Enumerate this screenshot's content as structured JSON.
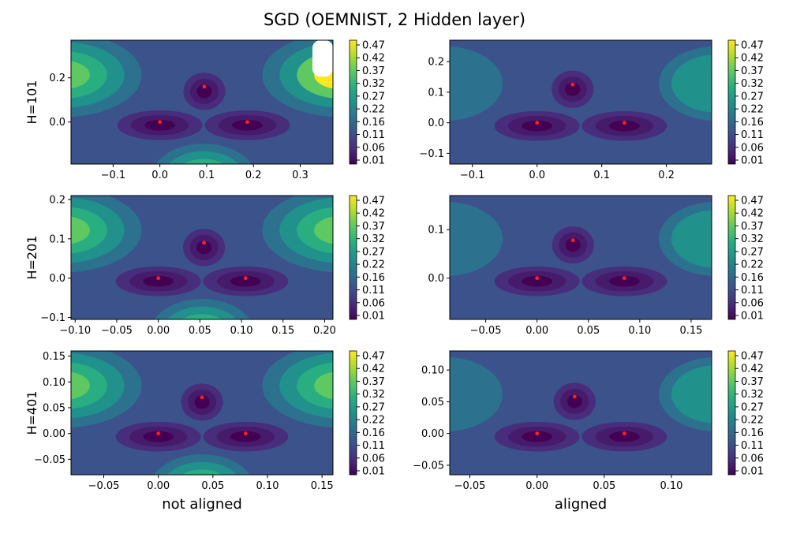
{
  "figure": {
    "title": "SGD (OEMNIST, 2 Hidden layer)"
  },
  "colors": {
    "viridis": [
      "#440154",
      "#472d7b",
      "#3b528b",
      "#2c728e",
      "#21918c",
      "#28ae80",
      "#5ec962",
      "#addc30",
      "#fde725"
    ],
    "marker": "#ff2020"
  },
  "colorbar": {
    "ticks": [
      "0.47",
      "0.42",
      "0.37",
      "0.32",
      "0.27",
      "0.22",
      "0.16",
      "0.11",
      "0.06",
      "0.01"
    ]
  },
  "chart_data": [
    {
      "type": "contour",
      "row_label": "H=101",
      "col_label": "",
      "xlim": [
        -0.19,
        0.37
      ],
      "ylim": [
        -0.19,
        0.37
      ],
      "xticks": [
        -0.1,
        0.0,
        0.1,
        0.2,
        0.3
      ],
      "xtick_labels": [
        "−0.1",
        "0.0",
        "0.1",
        "0.2",
        "0.3"
      ],
      "yticks": [
        0.0,
        0.2
      ],
      "ytick_labels": [
        "0.0",
        "0.2"
      ],
      "points": [
        [
          0.0,
          0.0
        ],
        [
          0.187,
          0.0
        ],
        [
          0.095,
          0.16
        ]
      ],
      "style": "not_aligned"
    },
    {
      "type": "contour",
      "row_label": "",
      "col_label": "",
      "xlim": [
        -0.135,
        0.27
      ],
      "ylim": [
        -0.135,
        0.27
      ],
      "xticks": [
        -0.1,
        0.0,
        0.1,
        0.2
      ],
      "xtick_labels": [
        "−0.1",
        "0.0",
        "0.1",
        "0.2"
      ],
      "yticks": [
        -0.1,
        0.0,
        0.1,
        0.2
      ],
      "ytick_labels": [
        "−0.1",
        "0.0",
        "0.1",
        "0.2"
      ],
      "points": [
        [
          0.0,
          0.0
        ],
        [
          0.135,
          0.0
        ],
        [
          0.055,
          0.125
        ]
      ],
      "style": "aligned"
    },
    {
      "type": "contour",
      "row_label": "H=201",
      "col_label": "",
      "xlim": [
        -0.105,
        0.21
      ],
      "ylim": [
        -0.105,
        0.21
      ],
      "xticks": [
        -0.1,
        -0.05,
        0.0,
        0.05,
        0.1,
        0.15,
        0.2
      ],
      "xtick_labels": [
        "−0.10",
        "−0.05",
        "0.00",
        "0.05",
        "0.10",
        "0.15",
        "0.20"
      ],
      "yticks": [
        -0.1,
        0.0,
        0.1,
        0.2
      ],
      "ytick_labels": [
        "−0.1",
        "0.0",
        "0.1",
        "0.2"
      ],
      "points": [
        [
          0.0,
          0.0
        ],
        [
          0.105,
          0.0
        ],
        [
          0.055,
          0.09
        ]
      ],
      "style": "not_aligned"
    },
    {
      "type": "contour",
      "row_label": "",
      "col_label": "",
      "xlim": [
        -0.085,
        0.17
      ],
      "ylim": [
        -0.085,
        0.17
      ],
      "xticks": [
        -0.05,
        0.0,
        0.05,
        0.1,
        0.15
      ],
      "xtick_labels": [
        "−0.05",
        "0.00",
        "0.05",
        "0.10",
        "0.15"
      ],
      "yticks": [
        0.0,
        0.1
      ],
      "ytick_labels": [
        "0.0",
        "0.1"
      ],
      "points": [
        [
          0.0,
          0.0
        ],
        [
          0.085,
          0.0
        ],
        [
          0.035,
          0.078
        ]
      ],
      "style": "aligned"
    },
    {
      "type": "contour",
      "row_label": "H=401",
      "col_label": "not aligned",
      "xlim": [
        -0.08,
        0.16
      ],
      "ylim": [
        -0.08,
        0.16
      ],
      "xticks": [
        -0.05,
        0.0,
        0.05,
        0.1,
        0.15
      ],
      "xtick_labels": [
        "−0.05",
        "0.00",
        "0.05",
        "0.10",
        "0.15"
      ],
      "yticks": [
        -0.05,
        0.0,
        0.05,
        0.1,
        0.15
      ],
      "ytick_labels": [
        "−0.05",
        "0.00",
        "0.05",
        "0.10",
        "0.15"
      ],
      "points": [
        [
          0.0,
          0.0
        ],
        [
          0.08,
          0.0
        ],
        [
          0.04,
          0.07
        ]
      ],
      "style": "not_aligned"
    },
    {
      "type": "contour",
      "row_label": "",
      "col_label": "aligned",
      "xlim": [
        -0.065,
        0.13
      ],
      "ylim": [
        -0.065,
        0.13
      ],
      "xticks": [
        -0.05,
        0.0,
        0.05,
        0.1
      ],
      "xtick_labels": [
        "−0.05",
        "0.00",
        "0.05",
        "0.10"
      ],
      "yticks": [
        -0.05,
        0.0,
        0.05,
        0.1
      ],
      "ytick_labels": [
        "−0.05",
        "0.00",
        "0.05",
        "0.10"
      ],
      "points": [
        [
          0.0,
          0.0
        ],
        [
          0.065,
          0.0
        ],
        [
          0.028,
          0.058
        ]
      ],
      "style": "aligned"
    }
  ]
}
